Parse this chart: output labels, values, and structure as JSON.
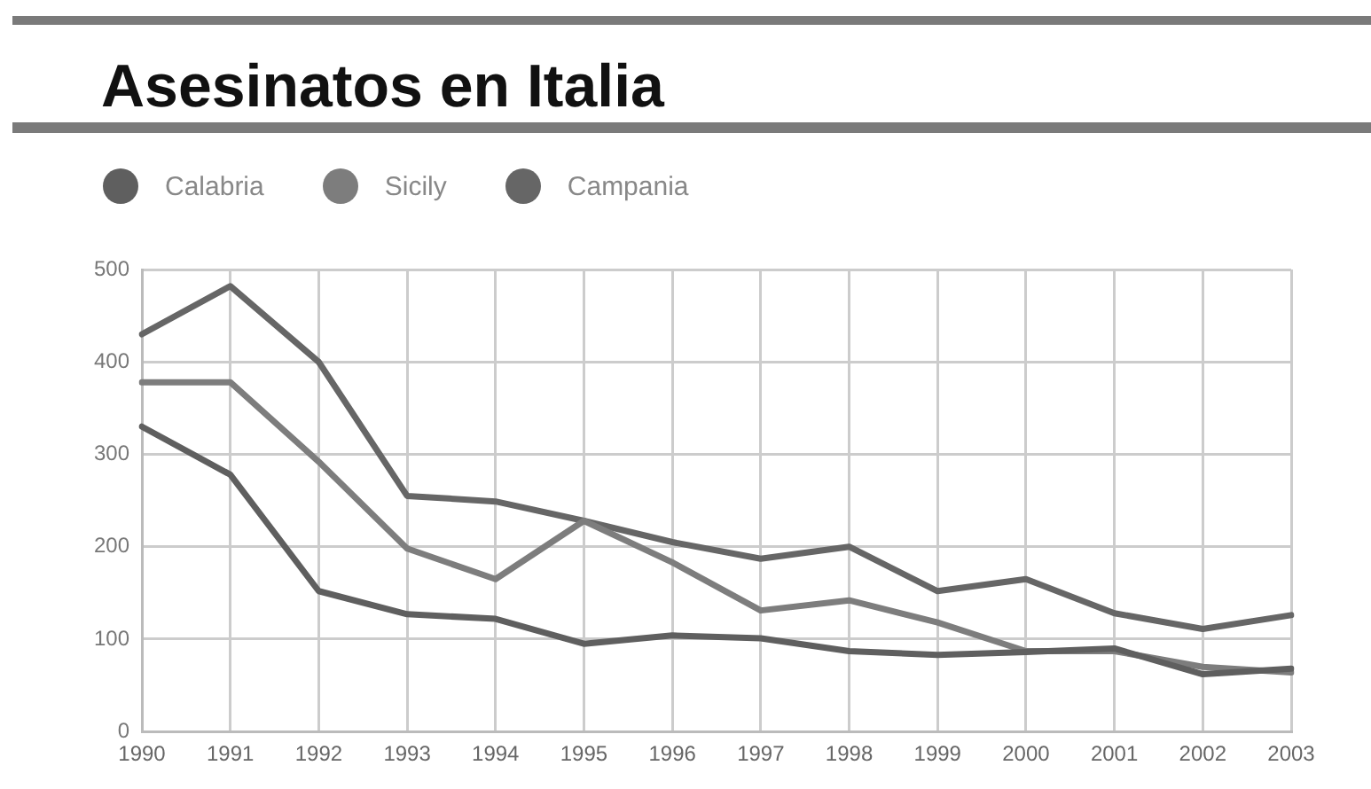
{
  "chart_data": {
    "type": "line",
    "title": "Asesinatos en Italia",
    "categories": [
      "1990",
      "1991",
      "1992",
      "1993",
      "1994",
      "1995",
      "1996",
      "1997",
      "1998",
      "1999",
      "2000",
      "2001",
      "2002",
      "2003"
    ],
    "series": [
      {
        "name": "Calabria",
        "color": "#5f5f5f",
        "values": [
          330,
          278,
          152,
          127,
          122,
          95,
          104,
          101,
          87,
          83,
          86,
          90,
          62,
          68
        ]
      },
      {
        "name": "Sicily",
        "color": "#7d7d7d",
        "values": [
          378,
          378,
          292,
          198,
          165,
          228,
          183,
          131,
          142,
          118,
          87,
          87,
          70,
          64
        ]
      },
      {
        "name": "Campania",
        "color": "#666666",
        "values": [
          430,
          482,
          400,
          255,
          249,
          228,
          205,
          187,
          200,
          152,
          165,
          128,
          111,
          126
        ]
      }
    ],
    "ylim": [
      0,
      500
    ],
    "yticks": [
      0,
      100,
      200,
      300,
      400,
      500
    ],
    "grid": true,
    "legend": "top left",
    "marker": "none",
    "line_style": "solid"
  }
}
